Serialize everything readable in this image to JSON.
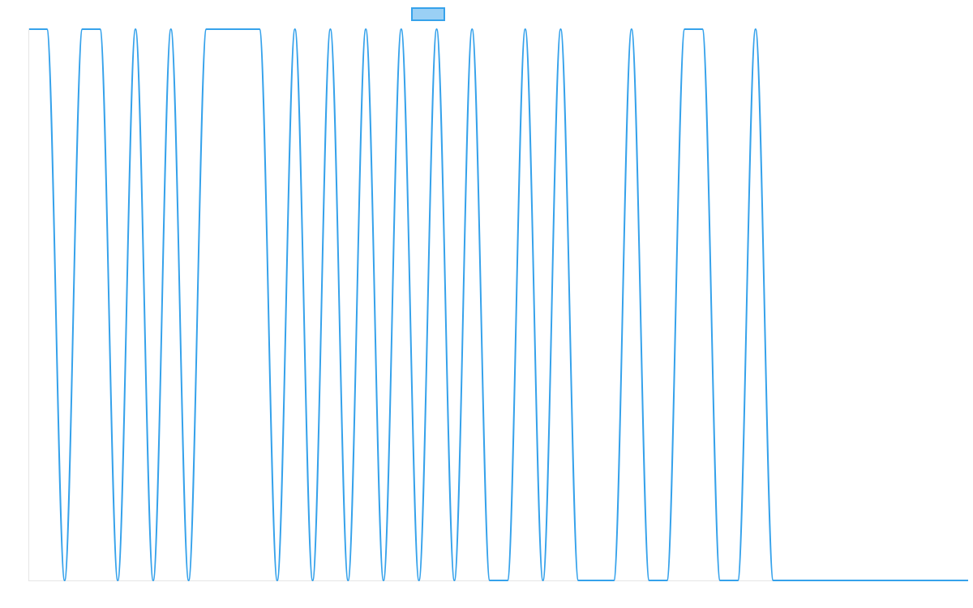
{
  "chart_data": {
    "type": "line",
    "title": "",
    "xlabel": "",
    "ylabel": "",
    "grid": false,
    "legend": "top-center",
    "ylim": [
      0,
      1
    ],
    "series": [
      {
        "name": "",
        "color": "#36a2eb",
        "fill": "#9ad0f5",
        "values": [
          1,
          1,
          0,
          1,
          1,
          0,
          1,
          0,
          1,
          0,
          1,
          1,
          1,
          1,
          0,
          1,
          0,
          1,
          0,
          1,
          0,
          1,
          0,
          1,
          0,
          1,
          0,
          0,
          1,
          0,
          1,
          0,
          0,
          0,
          1,
          0,
          0,
          1,
          1,
          0,
          0,
          1,
          0,
          0,
          0,
          0,
          0,
          0,
          0,
          0,
          0,
          0,
          0,
          0
        ]
      }
    ]
  }
}
